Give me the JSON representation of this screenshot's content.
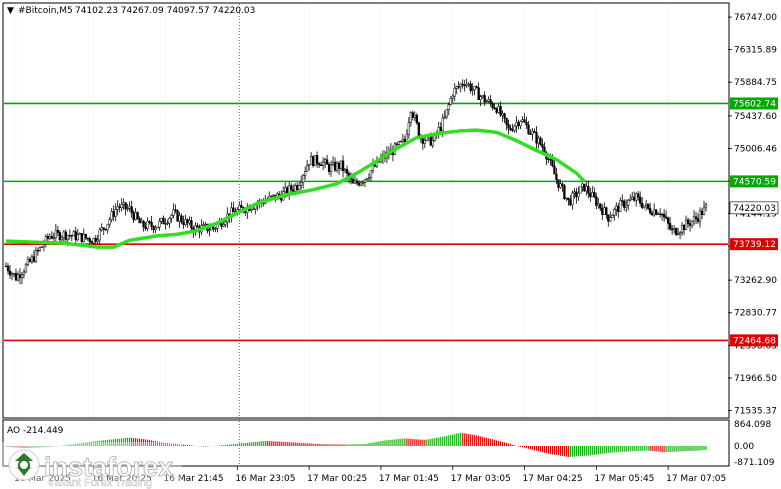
{
  "header": {
    "arrow": "▼",
    "symbol": "#Bitcoin,M5",
    "ohlc": "74102.23 74267.09 74097.57 74220.03"
  },
  "ao_label": "AO -214.449",
  "watermark": {
    "brand": "instaforex",
    "tagline": "Instant Forex Trading"
  },
  "colors": {
    "candle": "#000000",
    "ma": "#33dd22",
    "green_level": "#00aa00",
    "red_level": "#dd0000",
    "ao_up": "#00aa00",
    "ao_down": "#dd0000",
    "grid": "#b8b8b8"
  },
  "chart_data": {
    "type": "candlestick",
    "y_ticks": [
      "76747.00",
      "76315.89",
      "75884.75",
      "75437.60",
      "75006.46",
      "74575.33",
      "74144.19",
      "73713.05",
      "73262.90",
      "72830.77",
      "72398.63",
      "71966.50",
      "71535.37"
    ],
    "y_tick_values": [
      76747.0,
      76315.89,
      75884.75,
      75437.6,
      75006.46,
      74575.33,
      74144.19,
      73713.05,
      73262.9,
      72830.77,
      72398.63,
      71966.5,
      71535.37
    ],
    "ylim": [
      71450,
      76920
    ],
    "x_ticks": [
      "16 Mar 2025",
      "16 Mar 20:25",
      "16 Mar 21:45",
      "16 Mar 23:05",
      "17 Mar 00:25",
      "17 Mar 01:45",
      "17 Mar 03:05",
      "17 Mar 04:25",
      "17 Mar 05:45",
      "17 Mar 07:05"
    ],
    "x_tick_index": [
      5,
      44,
      80,
      116,
      152,
      188,
      224,
      260,
      296,
      332
    ],
    "bar_count": 352,
    "levels": [
      {
        "value": 75602.74,
        "label": "75602.74",
        "kind": "resistance"
      },
      {
        "value": 74570.59,
        "label": "74570.59",
        "kind": "resistance"
      },
      {
        "value": 73739.12,
        "label": "73739.12",
        "kind": "support"
      },
      {
        "value": 72464.68,
        "label": "72464.68",
        "kind": "support"
      }
    ],
    "current_price": {
      "value": 74220.03,
      "label": "74220.03"
    },
    "close_path": [
      [
        0,
        73450
      ],
      [
        5,
        73300
      ],
      [
        12,
        73500
      ],
      [
        22,
        73850
      ],
      [
        30,
        73870
      ],
      [
        44,
        73800
      ],
      [
        50,
        73990
      ],
      [
        56,
        74240
      ],
      [
        62,
        74200
      ],
      [
        68,
        73980
      ],
      [
        76,
        73990
      ],
      [
        84,
        74140
      ],
      [
        94,
        73950
      ],
      [
        104,
        73950
      ],
      [
        112,
        74140
      ],
      [
        120,
        74220
      ],
      [
        128,
        74300
      ],
      [
        138,
        74390
      ],
      [
        146,
        74520
      ],
      [
        152,
        74850
      ],
      [
        158,
        74840
      ],
      [
        162,
        74750
      ],
      [
        168,
        74780
      ],
      [
        174,
        74520
      ],
      [
        180,
        74620
      ],
      [
        188,
        74860
      ],
      [
        194,
        74980
      ],
      [
        200,
        75100
      ],
      [
        203,
        75550
      ],
      [
        208,
        75150
      ],
      [
        214,
        75100
      ],
      [
        220,
        75400
      ],
      [
        224,
        75750
      ],
      [
        230,
        75900
      ],
      [
        234,
        75790
      ],
      [
        240,
        75650
      ],
      [
        246,
        75550
      ],
      [
        252,
        75250
      ],
      [
        258,
        75400
      ],
      [
        264,
        75200
      ],
      [
        270,
        75000
      ],
      [
        276,
        74600
      ],
      [
        282,
        74300
      ],
      [
        290,
        74500
      ],
      [
        296,
        74300
      ],
      [
        302,
        74100
      ],
      [
        308,
        74250
      ],
      [
        316,
        74350
      ],
      [
        322,
        74200
      ],
      [
        328,
        74180
      ],
      [
        334,
        73900
      ],
      [
        338,
        73950
      ],
      [
        346,
        74080
      ],
      [
        351,
        74220
      ]
    ],
    "ma_path": [
      [
        0,
        73780
      ],
      [
        30,
        73750
      ],
      [
        46,
        73700
      ],
      [
        54,
        73700
      ],
      [
        62,
        73790
      ],
      [
        76,
        73850
      ],
      [
        86,
        73870
      ],
      [
        96,
        73920
      ],
      [
        106,
        74020
      ],
      [
        116,
        74150
      ],
      [
        126,
        74280
      ],
      [
        140,
        74390
      ],
      [
        154,
        74460
      ],
      [
        166,
        74540
      ],
      [
        176,
        74680
      ],
      [
        186,
        74840
      ],
      [
        194,
        74980
      ],
      [
        206,
        75150
      ],
      [
        218,
        75210
      ],
      [
        228,
        75240
      ],
      [
        236,
        75250
      ],
      [
        246,
        75220
      ],
      [
        256,
        75110
      ],
      [
        266,
        74980
      ],
      [
        276,
        74860
      ],
      [
        286,
        74680
      ],
      [
        290,
        74570
      ]
    ],
    "ao": {
      "label": "AO",
      "value": -214.449,
      "y_ticks": [
        "864.098",
        "0.00",
        "-871.109"
      ],
      "y_tick_values": [
        864.098,
        0,
        -871.109
      ],
      "path": [
        [
          0,
          -40
        ],
        [
          10,
          -120
        ],
        [
          20,
          -60
        ],
        [
          30,
          30
        ],
        [
          44,
          180
        ],
        [
          52,
          250
        ],
        [
          62,
          330
        ],
        [
          70,
          260
        ],
        [
          80,
          120
        ],
        [
          90,
          40
        ],
        [
          100,
          -30
        ],
        [
          110,
          40
        ],
        [
          120,
          120
        ],
        [
          130,
          200
        ],
        [
          140,
          160
        ],
        [
          150,
          110
        ],
        [
          160,
          70
        ],
        [
          170,
          60
        ],
        [
          180,
          80
        ],
        [
          190,
          220
        ],
        [
          200,
          300
        ],
        [
          210,
          240
        ],
        [
          220,
          380
        ],
        [
          228,
          520
        ],
        [
          236,
          420
        ],
        [
          244,
          260
        ],
        [
          252,
          100
        ],
        [
          262,
          -150
        ],
        [
          272,
          -420
        ],
        [
          282,
          -600
        ],
        [
          292,
          -520
        ],
        [
          302,
          -380
        ],
        [
          312,
          -300
        ],
        [
          322,
          -250
        ],
        [
          330,
          -340
        ],
        [
          338,
          -300
        ],
        [
          346,
          -260
        ],
        [
          351,
          -214
        ]
      ]
    }
  }
}
